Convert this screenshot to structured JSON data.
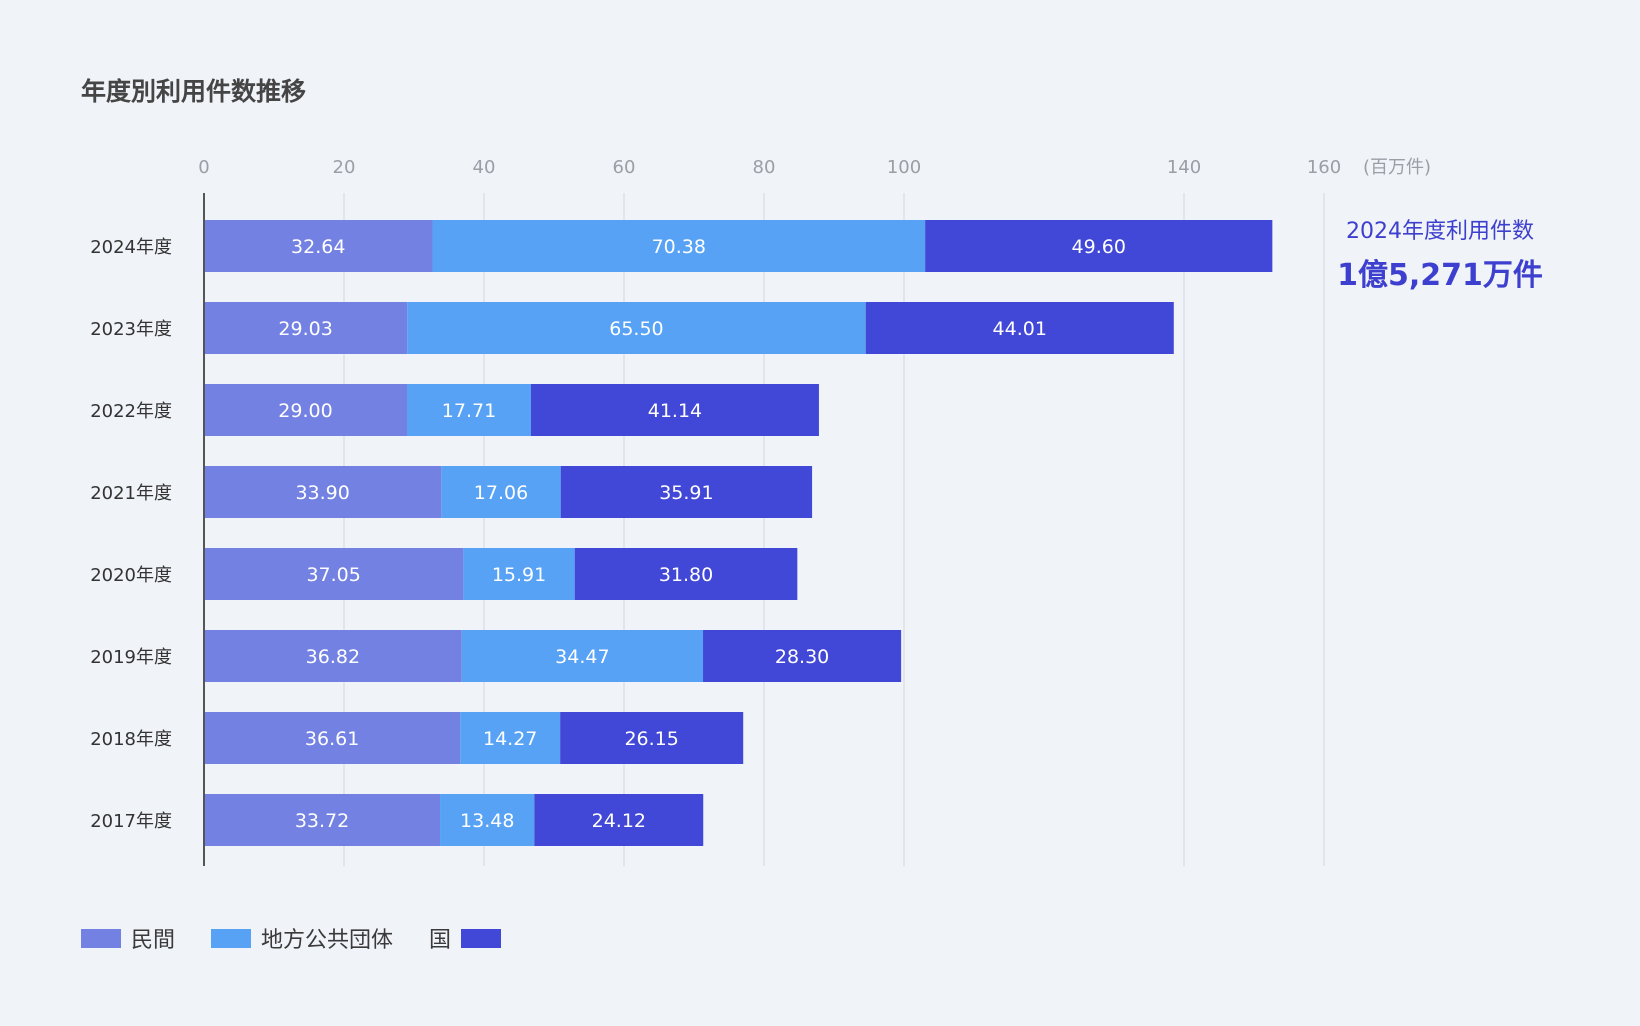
{
  "title": "年度別利用件数推移",
  "callout": {
    "label": "2024年度利用件数",
    "value": "1億5,271万件"
  },
  "colors": {
    "private": "#7381e3",
    "local": "#57a2f5",
    "national": "#4147d6"
  },
  "legend": [
    {
      "label": "民間",
      "color": "#7381e3"
    },
    {
      "label": "地方公共団体",
      "color": "#57a2f5"
    },
    {
      "label": "国",
      "color": "#4147d6"
    }
  ],
  "chart_data": {
    "type": "bar",
    "orientation": "horizontal",
    "stacked": true,
    "unit_label": "(百万件)",
    "xlim": [
      0,
      160
    ],
    "x_ticks": [
      "0",
      "20",
      "40",
      "60",
      "80",
      "100",
      "140",
      "160"
    ],
    "categories": [
      "2024年度",
      "2023年度",
      "2022年度",
      "2021年度",
      "2020年度",
      "2019年度",
      "2018年度",
      "2017年度"
    ],
    "series": [
      {
        "name": "民間",
        "values": [
          32.64,
          29.03,
          29.0,
          33.9,
          37.05,
          36.82,
          36.61,
          33.72
        ],
        "labels": [
          "32.64",
          "29.03",
          "29.00",
          "33.90",
          "37.05",
          "36.82",
          "36.61",
          "33.72"
        ]
      },
      {
        "name": "地方公共団体",
        "values": [
          70.38,
          65.5,
          17.71,
          17.06,
          15.91,
          34.47,
          14.27,
          13.48
        ],
        "labels": [
          "70.38",
          "65.50",
          "17.71",
          "17.06",
          "15.91",
          "34.47",
          "14.27",
          "13.48"
        ]
      },
      {
        "name": "国",
        "values": [
          49.6,
          44.01,
          41.14,
          35.91,
          31.8,
          28.3,
          26.15,
          24.12
        ],
        "labels": [
          "49.60",
          "44.01",
          "41.14",
          "35.91",
          "31.80",
          "28.30",
          "26.15",
          "24.12"
        ]
      }
    ],
    "grid": true,
    "legend_position": "bottom-left"
  }
}
